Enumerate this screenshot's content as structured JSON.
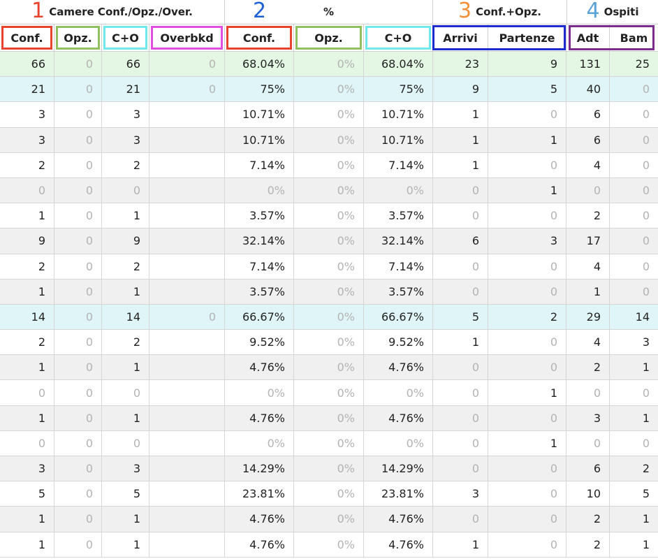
{
  "colors": {
    "red": "#e8432c",
    "green": "#8fc15f",
    "cyan": "#6fe9ee",
    "magenta": "#e24fe0",
    "blue": "#1d2ccf",
    "purple": "#7b2d8c",
    "num1": "#e8432c",
    "num2": "#1d5fd6",
    "num3": "#f0913a",
    "num4": "#5aa3d8"
  },
  "groups": [
    {
      "id": "camere",
      "number": "1",
      "title": "Camere Conf./Opz./Over."
    },
    {
      "id": "percent",
      "number": "2",
      "title": "%"
    },
    {
      "id": "confopz",
      "number": "3",
      "title": "Conf.+Opz."
    },
    {
      "id": "ospiti",
      "number": "4",
      "title": "Ospiti"
    }
  ],
  "columns": [
    {
      "id": "conf",
      "label": "Conf."
    },
    {
      "id": "opz",
      "label": "Opz."
    },
    {
      "id": "co",
      "label": "C+O"
    },
    {
      "id": "overbkd",
      "label": "Overbkd"
    },
    {
      "id": "pconf",
      "label": "Conf."
    },
    {
      "id": "popz",
      "label": "Opz."
    },
    {
      "id": "pco",
      "label": "C+O"
    },
    {
      "id": "arrivi",
      "label": "Arrivi"
    },
    {
      "id": "partenze",
      "label": "Partenze"
    },
    {
      "id": "adt",
      "label": "Adt"
    },
    {
      "id": "bam",
      "label": "Bam"
    }
  ],
  "rows": [
    {
      "bg": "green",
      "cells": [
        "66",
        "0",
        "66",
        "0",
        "68.04%",
        "0%",
        "68.04%",
        "23",
        "9",
        "131",
        "25"
      ]
    },
    {
      "bg": "cyan",
      "cells": [
        "21",
        "0",
        "21",
        "0",
        "75%",
        "0%",
        "75%",
        "9",
        "5",
        "40",
        "0"
      ]
    },
    {
      "bg": "white",
      "cells": [
        "3",
        "0",
        "3",
        "",
        "10.71%",
        "0%",
        "10.71%",
        "1",
        "0",
        "6",
        "0"
      ]
    },
    {
      "bg": "gray",
      "cells": [
        "3",
        "0",
        "3",
        "",
        "10.71%",
        "0%",
        "10.71%",
        "1",
        "1",
        "6",
        "0"
      ]
    },
    {
      "bg": "white",
      "cells": [
        "2",
        "0",
        "2",
        "",
        "7.14%",
        "0%",
        "7.14%",
        "1",
        "0",
        "4",
        "0"
      ]
    },
    {
      "bg": "gray",
      "cells": [
        "0",
        "0",
        "0",
        "",
        "0%",
        "0%",
        "0%",
        "0",
        "1",
        "0",
        "0"
      ]
    },
    {
      "bg": "white",
      "cells": [
        "1",
        "0",
        "1",
        "",
        "3.57%",
        "0%",
        "3.57%",
        "0",
        "0",
        "2",
        "0"
      ]
    },
    {
      "bg": "gray",
      "cells": [
        "9",
        "0",
        "9",
        "",
        "32.14%",
        "0%",
        "32.14%",
        "6",
        "3",
        "17",
        "0"
      ]
    },
    {
      "bg": "white",
      "cells": [
        "2",
        "0",
        "2",
        "",
        "7.14%",
        "0%",
        "7.14%",
        "0",
        "0",
        "4",
        "0"
      ]
    },
    {
      "bg": "gray",
      "cells": [
        "1",
        "0",
        "1",
        "",
        "3.57%",
        "0%",
        "3.57%",
        "0",
        "0",
        "1",
        "0"
      ]
    },
    {
      "bg": "cyan",
      "cells": [
        "14",
        "0",
        "14",
        "0",
        "66.67%",
        "0%",
        "66.67%",
        "5",
        "2",
        "29",
        "14"
      ]
    },
    {
      "bg": "white",
      "cells": [
        "2",
        "0",
        "2",
        "",
        "9.52%",
        "0%",
        "9.52%",
        "1",
        "0",
        "4",
        "3"
      ]
    },
    {
      "bg": "gray",
      "cells": [
        "1",
        "0",
        "1",
        "",
        "4.76%",
        "0%",
        "4.76%",
        "0",
        "0",
        "2",
        "1"
      ]
    },
    {
      "bg": "white",
      "cells": [
        "0",
        "0",
        "0",
        "",
        "0%",
        "0%",
        "0%",
        "0",
        "1",
        "0",
        "0"
      ]
    },
    {
      "bg": "gray",
      "cells": [
        "1",
        "0",
        "1",
        "",
        "4.76%",
        "0%",
        "4.76%",
        "0",
        "0",
        "3",
        "1"
      ]
    },
    {
      "bg": "white",
      "cells": [
        "0",
        "0",
        "0",
        "",
        "0%",
        "0%",
        "0%",
        "0",
        "1",
        "0",
        "0"
      ]
    },
    {
      "bg": "gray",
      "cells": [
        "3",
        "0",
        "3",
        "",
        "14.29%",
        "0%",
        "14.29%",
        "0",
        "0",
        "6",
        "2"
      ]
    },
    {
      "bg": "white",
      "cells": [
        "5",
        "0",
        "5",
        "",
        "23.81%",
        "0%",
        "23.81%",
        "3",
        "0",
        "10",
        "5"
      ]
    },
    {
      "bg": "gray",
      "cells": [
        "1",
        "0",
        "1",
        "",
        "4.76%",
        "0%",
        "4.76%",
        "0",
        "0",
        "2",
        "1"
      ]
    },
    {
      "bg": "white",
      "cells": [
        "1",
        "0",
        "1",
        "",
        "4.76%",
        "0%",
        "4.76%",
        "1",
        "0",
        "2",
        "1"
      ]
    }
  ]
}
